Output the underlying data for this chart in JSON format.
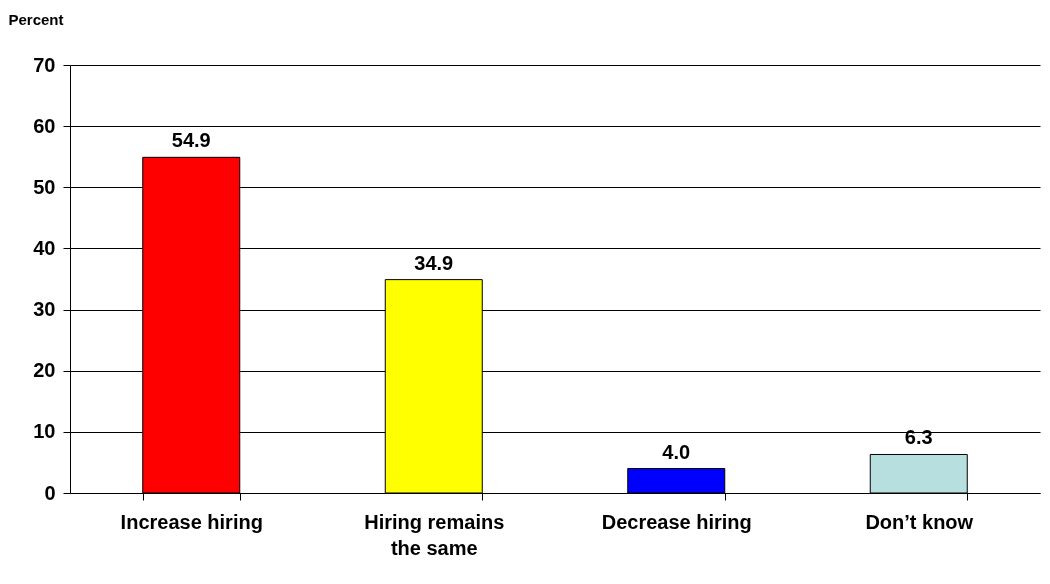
{
  "chart_data": {
    "type": "bar",
    "ylabel": "Percent",
    "categories": [
      "Increase hiring",
      "Hiring remains the same",
      "Decrease hiring",
      "Don’t know"
    ],
    "values": [
      54.9,
      34.9,
      4.0,
      6.3
    ],
    "colors": [
      "#ff0000",
      "#ffff00",
      "#0000ff",
      "#b7dfe0"
    ],
    "value_labels": [
      "54.9",
      "34.9",
      "4.0",
      "6.3"
    ],
    "ylim": [
      0,
      70
    ],
    "yticks": [
      0,
      10,
      20,
      30,
      40,
      50,
      60,
      70
    ],
    "grid": "y"
  }
}
